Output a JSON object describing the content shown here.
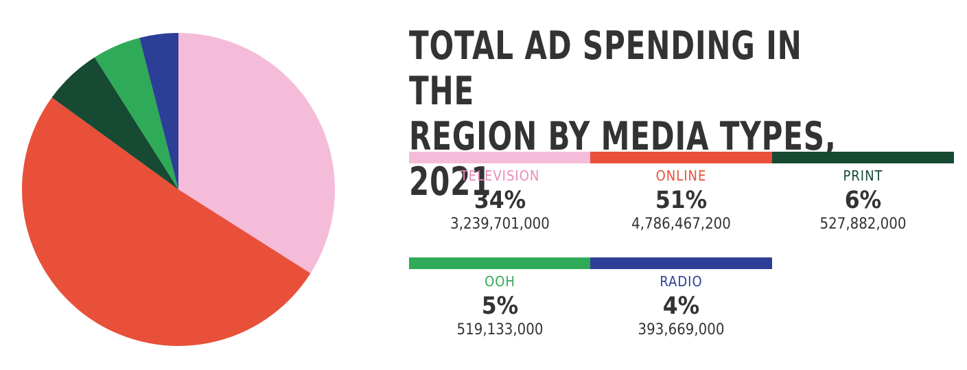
{
  "title_lines": [
    "TOTAL AD SPENDING IN THE",
    "REGION BY MEDIA TYPES, 2021"
  ],
  "chart_data": {
    "type": "pie",
    "title": "TOTAL AD SPENDING IN THE REGION BY MEDIA TYPES, 2021",
    "slices": [
      {
        "name": "TELEVISION",
        "percent": 34,
        "percent_label": "34%",
        "value": 3239701000,
        "value_label": "3,239,701,000",
        "color": "#f5bcd9",
        "label_color": "#e98bb9"
      },
      {
        "name": "ONLINE",
        "percent": 51,
        "percent_label": "51%",
        "value": 4786467200,
        "value_label": "4,786,467,200",
        "color": "#e8503a",
        "label_color": "#e8503a"
      },
      {
        "name": "PRINT",
        "percent": 6,
        "percent_label": "6%",
        "value": 527882000,
        "value_label": "527,882,000",
        "color": "#174a33",
        "label_color": "#174a33"
      },
      {
        "name": "OOH",
        "percent": 5,
        "percent_label": "5%",
        "value": 519133000,
        "value_label": "519,133,000",
        "color": "#2faa58",
        "label_color": "#2faa58"
      },
      {
        "name": "RADIO",
        "percent": 4,
        "percent_label": "4%",
        "value": 393669000,
        "value_label": "393,669,000",
        "color": "#2d3e97",
        "label_color": "#2d3e97"
      }
    ]
  }
}
